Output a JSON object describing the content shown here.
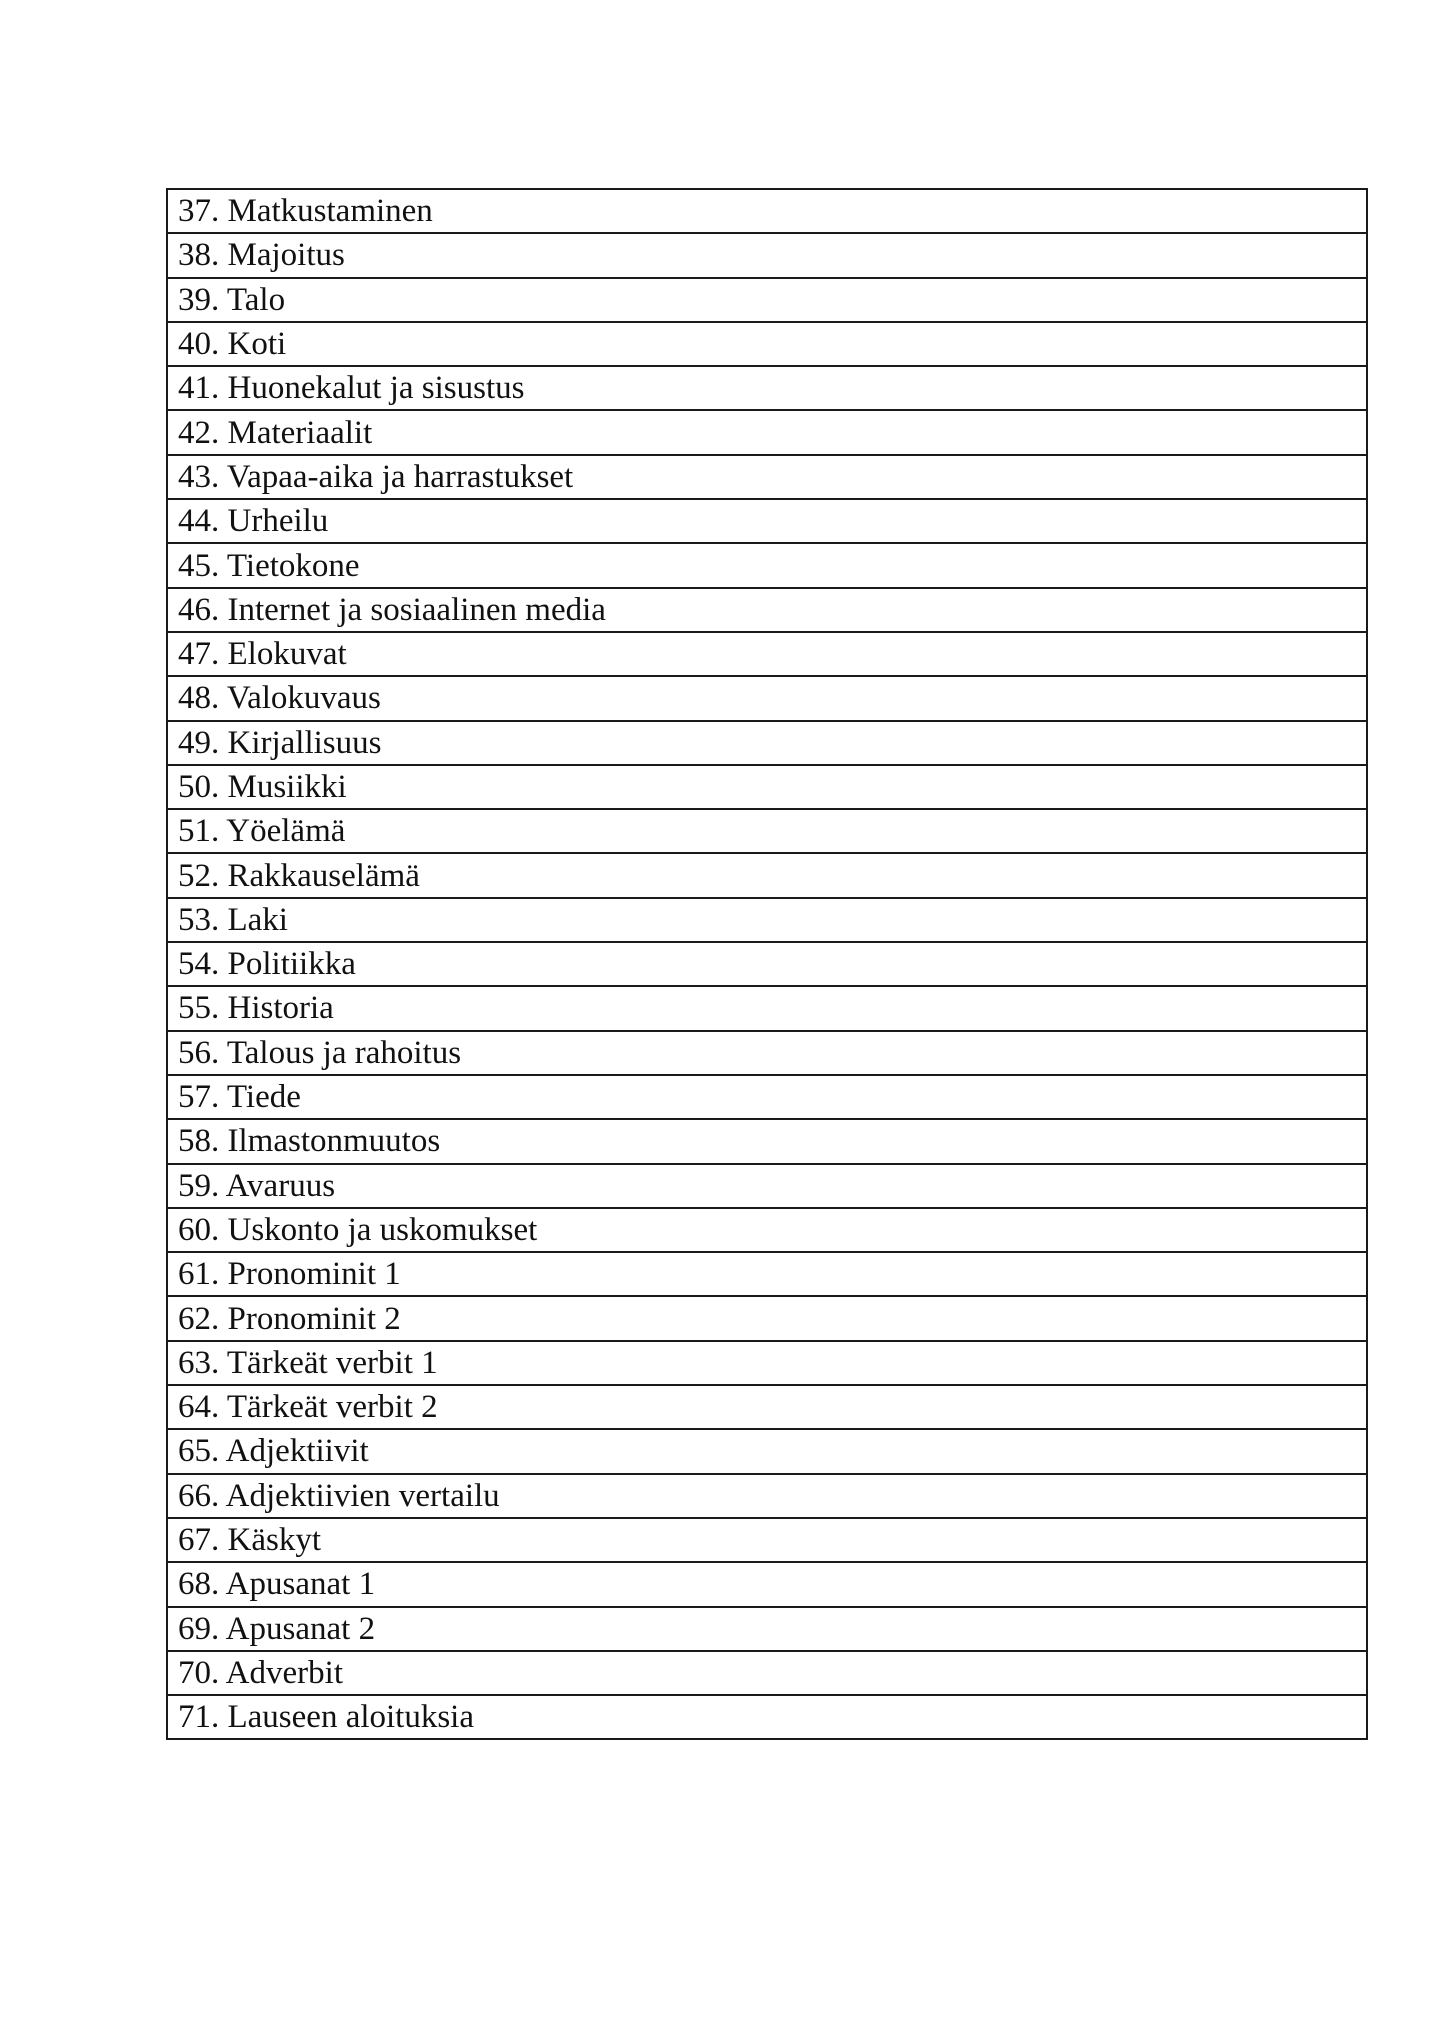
{
  "items": [
    "37. Matkustaminen",
    "38. Majoitus",
    "39. Talo",
    "40. Koti",
    "41. Huonekalut ja sisustus",
    "42. Materiaalit",
    "43. Vapaa-aika ja harrastukset",
    "44. Urheilu",
    "45. Tietokone",
    "46. Internet ja sosiaalinen media",
    "47. Elokuvat",
    "48. Valokuvaus",
    "49. Kirjallisuus",
    "50. Musiikki",
    "51. Yöelämä",
    "52. Rakkauselämä",
    "53. Laki",
    "54. Politiikka",
    "55. Historia",
    "56. Talous ja rahoitus",
    "57. Tiede",
    "58. Ilmastonmuutos",
    "59. Avaruus",
    "60. Uskonto ja uskomukset",
    "61. Pronominit 1",
    "62. Pronominit 2",
    "63. Tärkeät verbit 1",
    "64. Tärkeät verbit 2",
    "65. Adjektiivit",
    "66. Adjektiivien vertailu",
    "67. Käskyt",
    "68. Apusanat 1",
    "69. Apusanat 2",
    "70. Adverbit",
    "71. Lauseen aloituksia"
  ]
}
